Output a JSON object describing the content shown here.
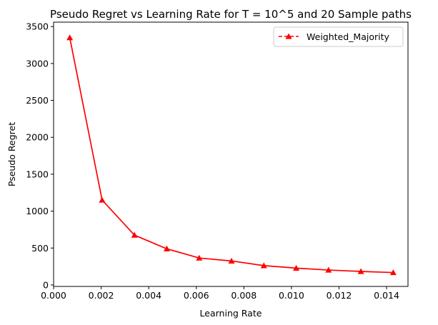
{
  "chart_data": {
    "type": "line",
    "title": "Pseudo Regret vs Learning Rate for T = 10^5 and 20 Sample paths",
    "xlabel": "Learning Rate",
    "ylabel": "Pseudo Regret",
    "xlim": [
      0.0,
      0.0149
    ],
    "ylim": [
      -20,
      3560
    ],
    "xticks": [
      0.0,
      0.002,
      0.004,
      0.006,
      0.008,
      0.01,
      0.012,
      0.014
    ],
    "xtick_labels": [
      "0.000",
      "0.002",
      "0.004",
      "0.006",
      "0.008",
      "0.010",
      "0.012",
      "0.014"
    ],
    "yticks": [
      0,
      500,
      1000,
      1500,
      2000,
      2500,
      3000,
      3500
    ],
    "ytick_labels": [
      "0",
      "500",
      "1000",
      "1500",
      "2000",
      "2500",
      "3000",
      "3500"
    ],
    "grid": false,
    "legend_position": "top-right",
    "series": [
      {
        "name": "Weighted_Majority",
        "color": "#ff0000",
        "marker": "triangle-up",
        "line_style": "solid",
        "legend_line_style": "dashed",
        "x": [
          0.00068,
          0.00204,
          0.0034,
          0.00476,
          0.00612,
          0.00748,
          0.00884,
          0.0102,
          0.01156,
          0.01292,
          0.01428
        ],
        "y": [
          3350,
          1150,
          675,
          490,
          365,
          325,
          262,
          228,
          202,
          183,
          168
        ]
      }
    ]
  }
}
